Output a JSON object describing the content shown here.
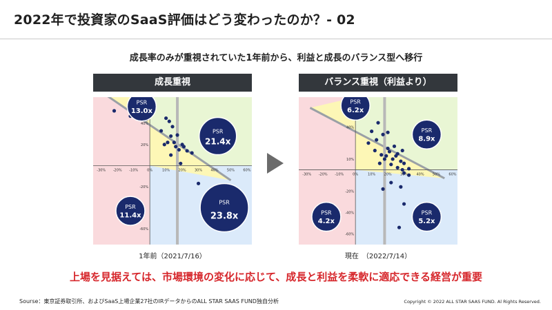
{
  "title": "2022年で投資家のSaaS評価はどう変わったのか？- 02",
  "subtitle": "成長率のみが重視されていた1年前から、利益と成長のバランス型へ移行",
  "conclusion": "上場を見据えては、市場環境の変化に応じて、成長と利益を柔軟に適応できる経営が重要",
  "source": "Sourse：東京証券取引所、およびSaaS上場企業27社のIRデータからのALL STAR SAAS FUND独自分析",
  "copyright": "Copyright © 2022 ALL STAR SAAS FUND. Al Rights Reserved.",
  "colors": {
    "red_zone": "#fadadd",
    "yellow_zone": "#fdf7b6",
    "green_zone": "#e9f6d4",
    "blue_zone": "#dbeafa",
    "bubble": "#1a2a6c",
    "dot": "#1a2a6c",
    "header_bg": "#33373c",
    "accent_red": "#d6262b"
  },
  "chart_data": [
    {
      "type": "scatter",
      "header": "成長重視",
      "caption": "1年前（2021/7/16）",
      "x_ticks": [
        "-30%",
        "-20%",
        "-10%",
        "0%",
        "10%",
        "20%",
        "30%",
        "40%",
        "50%",
        "60%"
      ],
      "y_ticks": [
        "40%",
        "20%",
        "-20%"
      ],
      "y_ticks_partial": [
        "-60%"
      ],
      "xlim": [
        -35,
        63
      ],
      "ylim": [
        -75,
        65
      ],
      "points": [
        [
          -22,
          52
        ],
        [
          -12,
          47
        ],
        [
          -2,
          44
        ],
        [
          10,
          45
        ],
        [
          12,
          42
        ],
        [
          14,
          37
        ],
        [
          7,
          33
        ],
        [
          13,
          28
        ],
        [
          17,
          29
        ],
        [
          11,
          22
        ],
        [
          15,
          22
        ],
        [
          9,
          20
        ],
        [
          20,
          20
        ],
        [
          16,
          18
        ],
        [
          21,
          18
        ],
        [
          18,
          15
        ],
        [
          23,
          14
        ],
        [
          13,
          10
        ],
        [
          26,
          12
        ],
        [
          19,
          2
        ],
        [
          30,
          -17
        ]
      ],
      "quadrants": [
        {
          "label": "PSR",
          "value": "13.0x",
          "x": -5,
          "y": 56,
          "size": "small"
        },
        {
          "label": "PSR",
          "value": "21.4x",
          "x": 42,
          "y": 28,
          "size": "medium"
        },
        {
          "label": "PSR",
          "value": "11.4x",
          "x": -12,
          "y": -43,
          "size": "small"
        },
        {
          "label": "PSR",
          "value": "23.8x",
          "x": 46,
          "y": -40,
          "size": "large"
        }
      ]
    },
    {
      "type": "scatter",
      "header": "バランス重視（利益より）",
      "caption": "現在　（2022/7/14）",
      "x_ticks": [
        "-30%",
        "-20%",
        "-10%",
        "0%",
        "10%",
        "20%",
        "30%",
        "40%",
        "50%",
        "60%"
      ],
      "y_ticks": [
        "60%",
        "40%",
        "10%",
        "-20%",
        "-40%",
        "-60%"
      ],
      "xlim": [
        -35,
        63
      ],
      "ylim": [
        -70,
        68
      ],
      "points": [
        [
          14,
          44
        ],
        [
          10,
          36
        ],
        [
          20,
          35
        ],
        [
          17,
          33
        ],
        [
          13,
          28
        ],
        [
          8,
          25
        ],
        [
          24,
          22
        ],
        [
          20,
          20
        ],
        [
          12,
          18
        ],
        [
          29,
          18
        ],
        [
          21,
          17
        ],
        [
          26,
          15
        ],
        [
          16,
          14
        ],
        [
          19,
          13
        ],
        [
          25,
          13
        ],
        [
          18,
          10
        ],
        [
          23,
          10
        ],
        [
          28,
          8
        ],
        [
          15,
          6
        ],
        [
          30,
          6
        ],
        [
          22,
          5
        ],
        [
          26,
          2
        ],
        [
          29,
          0
        ],
        [
          33,
          1
        ],
        [
          30,
          -3
        ],
        [
          33,
          -5
        ],
        [
          22,
          -12
        ],
        [
          17,
          -18
        ],
        [
          28,
          -16
        ],
        [
          30,
          -32
        ],
        [
          27,
          -54
        ]
      ],
      "quadrants": [
        {
          "label": "PSR",
          "value": "6.2x",
          "x": 0,
          "y": 60,
          "size": "small"
        },
        {
          "label": "PSR",
          "value": "8.9x",
          "x": 44,
          "y": 33,
          "size": "small"
        },
        {
          "label": "PSR",
          "value": "4.2x",
          "x": -18,
          "y": -44,
          "size": "small"
        },
        {
          "label": "PSR",
          "value": "5.2x",
          "x": 44,
          "y": -44,
          "size": "small"
        }
      ]
    }
  ]
}
